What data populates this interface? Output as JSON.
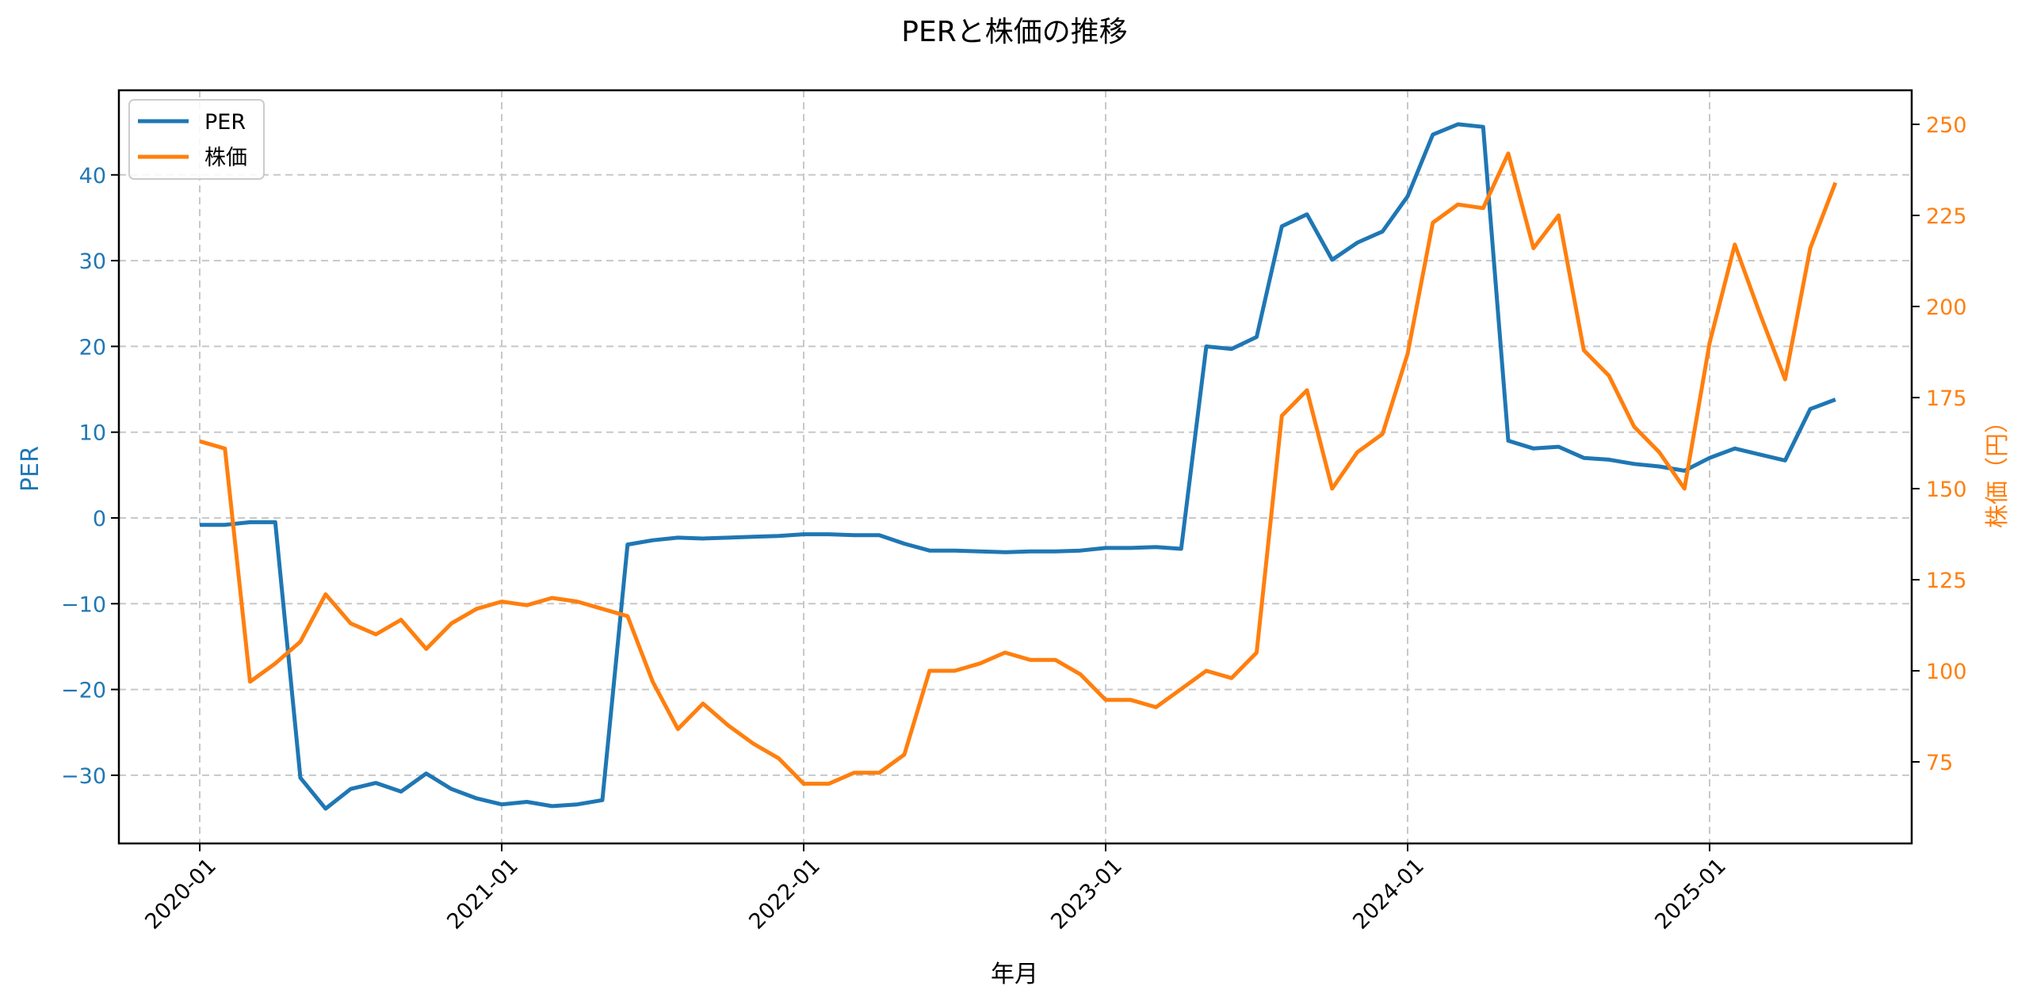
{
  "chart_data": {
    "type": "line",
    "title": "PERと株価の推移",
    "xlabel": "年月",
    "ylabel": "PER",
    "ylabel_right": "株価（円）",
    "ylim": [
      -38,
      49
    ],
    "ylim_right": [
      61,
      259
    ],
    "grid": true,
    "legend_position": "upper left",
    "x_tick_labels": [
      "2020-01",
      "2021-01",
      "2022-01",
      "2023-01",
      "2024-01",
      "2025-01"
    ],
    "y_tick_labels": [
      "−30",
      "−20",
      "−10",
      "0",
      "10",
      "20",
      "30",
      "40"
    ],
    "y_ticks": [
      -30,
      -20,
      -10,
      0,
      10,
      20,
      30,
      40
    ],
    "y_right_tick_labels": [
      "75",
      "100",
      "125",
      "150",
      "175",
      "200",
      "225",
      "250"
    ],
    "y_right_ticks": [
      75,
      100,
      125,
      150,
      175,
      200,
      225,
      250
    ],
    "x": [
      "2020-01",
      "2020-02",
      "2020-03",
      "2020-04",
      "2020-05",
      "2020-06",
      "2020-07",
      "2020-08",
      "2020-09",
      "2020-10",
      "2020-11",
      "2020-12",
      "2021-01",
      "2021-02",
      "2021-03",
      "2021-04",
      "2021-05",
      "2021-06",
      "2021-07",
      "2021-08",
      "2021-09",
      "2021-10",
      "2021-11",
      "2021-12",
      "2022-01",
      "2022-02",
      "2022-03",
      "2022-04",
      "2022-05",
      "2022-06",
      "2022-07",
      "2022-08",
      "2022-09",
      "2022-10",
      "2022-11",
      "2022-12",
      "2023-01",
      "2023-02",
      "2023-03",
      "2023-04",
      "2023-05",
      "2023-06",
      "2023-07",
      "2023-08",
      "2023-09",
      "2023-10",
      "2023-11",
      "2023-12",
      "2024-01",
      "2024-02",
      "2024-03",
      "2024-04",
      "2024-05",
      "2024-06",
      "2024-07",
      "2024-08",
      "2024-09",
      "2024-10",
      "2024-11",
      "2024-12",
      "2025-01",
      "2025-02",
      "2025-03",
      "2025-04",
      "2025-05",
      "2025-06"
    ],
    "series": [
      {
        "name": "PER",
        "axis": "left",
        "color": "#1f77b4",
        "values": [
          -0.8,
          -0.8,
          -0.5,
          -0.5,
          -30.3,
          -33.9,
          -31.6,
          -30.9,
          -31.9,
          -29.8,
          -31.6,
          -32.7,
          -33.4,
          -33.1,
          -33.6,
          -33.4,
          -32.9,
          -3.1,
          -2.6,
          -2.3,
          -2.4,
          -2.3,
          -2.2,
          -2.1,
          -1.9,
          -1.9,
          -2.0,
          -2.0,
          -3.0,
          -3.8,
          -3.8,
          -3.9,
          -4.0,
          -3.9,
          -3.9,
          -3.8,
          -3.5,
          -3.5,
          -3.4,
          -3.6,
          20.0,
          19.7,
          21.1,
          34.0,
          35.4,
          30.1,
          32.1,
          33.4,
          37.5,
          44.7,
          45.9,
          45.6,
          9.0,
          8.1,
          8.3,
          7.0,
          6.8,
          6.3,
          6.0,
          5.5,
          7.0,
          8.1,
          7.4,
          6.7,
          12.7,
          13.8
        ]
      },
      {
        "name": "株価",
        "axis": "right",
        "color": "#ff7f0e",
        "values": [
          163,
          161,
          97,
          102,
          108,
          121,
          113,
          110,
          114,
          106,
          113,
          117,
          119,
          118,
          120,
          119,
          117,
          115,
          97,
          84,
          91,
          85,
          80,
          76,
          69,
          69,
          72,
          72,
          77,
          100,
          100,
          102,
          105,
          103,
          103,
          99,
          92,
          92,
          90,
          95,
          100,
          98,
          105,
          170,
          177,
          150,
          160,
          165,
          187,
          223,
          228,
          227,
          242,
          216,
          225,
          188,
          181,
          167,
          160,
          150,
          190,
          217,
          198,
          180,
          216,
          234
        ]
      }
    ]
  },
  "legend": {
    "items": [
      {
        "label": "PER",
        "color": "#1f77b4"
      },
      {
        "label": "株価",
        "color": "#ff7f0e"
      }
    ]
  }
}
